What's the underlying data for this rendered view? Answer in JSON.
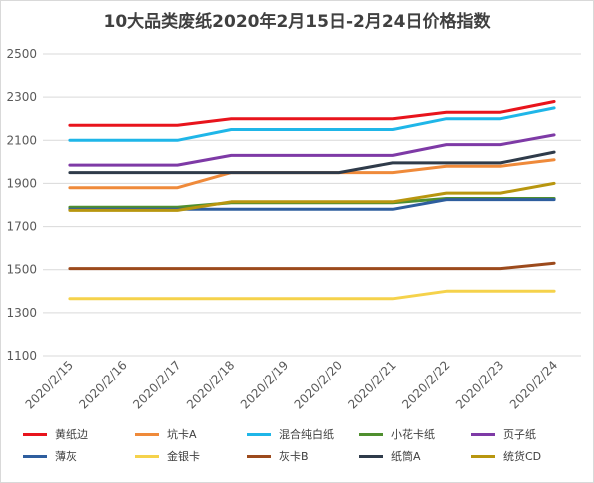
{
  "chart_data": {
    "type": "line",
    "title": "10大品类废纸2020年2月15日-2月24日价格指数",
    "x": [
      "2020/2/15",
      "2020/2/16",
      "2020/2/17",
      "2020/2/18",
      "2020/2/19",
      "2020/2/20",
      "2020/2/21",
      "2020/2/22",
      "2020/2/23",
      "2020/2/24"
    ],
    "yticks": [
      1100,
      1300,
      1500,
      1700,
      1900,
      2100,
      2300,
      2500
    ],
    "ylim": [
      1100,
      2500
    ],
    "grid": true,
    "legend_position": "bottom",
    "series": [
      {
        "name": "黄纸边",
        "color": "#e8141c",
        "values": [
          2170,
          2170,
          2170,
          2200,
          2200,
          2200,
          2200,
          2230,
          2230,
          2280
        ]
      },
      {
        "name": "坑卡A",
        "color": "#ef8a3a",
        "values": [
          1880,
          1880,
          1880,
          1950,
          1950,
          1950,
          1950,
          1980,
          1980,
          2010
        ]
      },
      {
        "name": "混合纯白纸",
        "color": "#1fb6e8",
        "values": [
          2100,
          2100,
          2100,
          2150,
          2150,
          2150,
          2150,
          2200,
          2200,
          2250
        ]
      },
      {
        "name": "小花卡纸",
        "color": "#4f8f2f",
        "values": [
          1790,
          1790,
          1790,
          1810,
          1810,
          1810,
          1810,
          1830,
          1830,
          1830
        ]
      },
      {
        "name": "页子纸",
        "color": "#7e3aa6",
        "values": [
          1985,
          1985,
          1985,
          2030,
          2030,
          2030,
          2030,
          2080,
          2080,
          2125
        ]
      },
      {
        "name": "薄灰",
        "color": "#2e5e9e",
        "values": [
          1780,
          1780,
          1780,
          1780,
          1780,
          1780,
          1780,
          1825,
          1825,
          1825
        ]
      },
      {
        "name": "金银卡",
        "color": "#f5d24b",
        "values": [
          1365,
          1365,
          1365,
          1365,
          1365,
          1365,
          1365,
          1400,
          1400,
          1400
        ]
      },
      {
        "name": "灰卡B",
        "color": "#9c4a1c",
        "values": [
          1505,
          1505,
          1505,
          1505,
          1505,
          1505,
          1505,
          1505,
          1505,
          1530
        ]
      },
      {
        "name": "纸筒A",
        "color": "#2f3b4a",
        "values": [
          1950,
          1950,
          1950,
          1950,
          1950,
          1950,
          1995,
          1995,
          1995,
          2045
        ]
      },
      {
        "name": "统货CD",
        "color": "#b8960f",
        "values": [
          1775,
          1775,
          1775,
          1815,
          1815,
          1815,
          1815,
          1855,
          1855,
          1900
        ]
      }
    ]
  }
}
